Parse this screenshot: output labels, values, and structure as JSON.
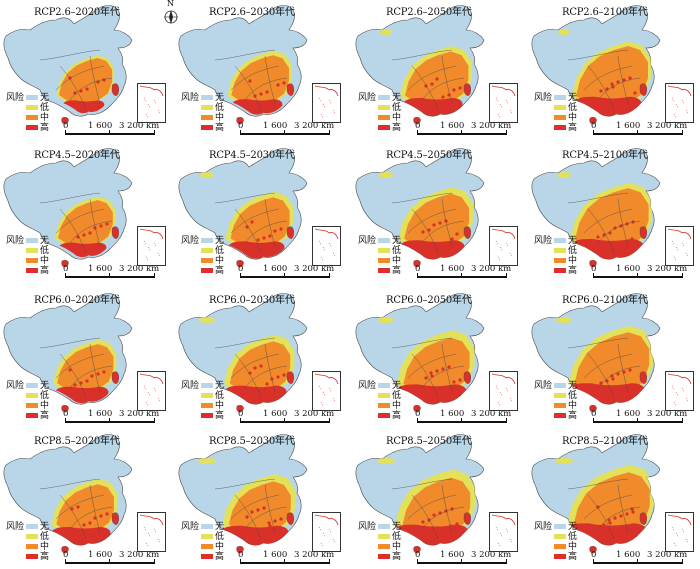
{
  "panels": [
    {
      "title": "RCP2.6–2020年代"
    },
    {
      "title": "RCP2.6–2030年代"
    },
    {
      "title": "RCP2.6–2050年代"
    },
    {
      "title": "RCP2.6–2100年代"
    },
    {
      "title": "RCP4.5–2020年代"
    },
    {
      "title": "RCP4.5–2030年代"
    },
    {
      "title": "RCP4.5–2050年代"
    },
    {
      "title": "RCP4.5–2100年代"
    },
    {
      "title": "RCP6.0–2020年代"
    },
    {
      "title": "RCP6.0–2030年代"
    },
    {
      "title": "RCP6.0–2050年代"
    },
    {
      "title": "RCP6.0–2100年代"
    },
    {
      "title": "RCP8.5–2020年代"
    },
    {
      "title": "RCP8.5–2030年代"
    },
    {
      "title": "RCP8.5–2050年代"
    },
    {
      "title": "RCP8.5–2100年代"
    }
  ],
  "legend": {
    "title": "风险",
    "items": [
      {
        "label": "无",
        "color": "#b8d6e8"
      },
      {
        "label": "低",
        "color": "#e3e05a"
      },
      {
        "label": "中",
        "color": "#f08a2a"
      },
      {
        "label": "高",
        "color": "#d9302a"
      }
    ]
  },
  "scale": {
    "t0": "0",
    "t1": "1 600",
    "t2": "3 200 km"
  },
  "compass": {
    "label": "N"
  },
  "colors": {
    "none": "#b8d6e8",
    "low": "#e3e05a",
    "mid": "#f08a2a",
    "high": "#d9302a",
    "border": "#4a4a4a"
  }
}
